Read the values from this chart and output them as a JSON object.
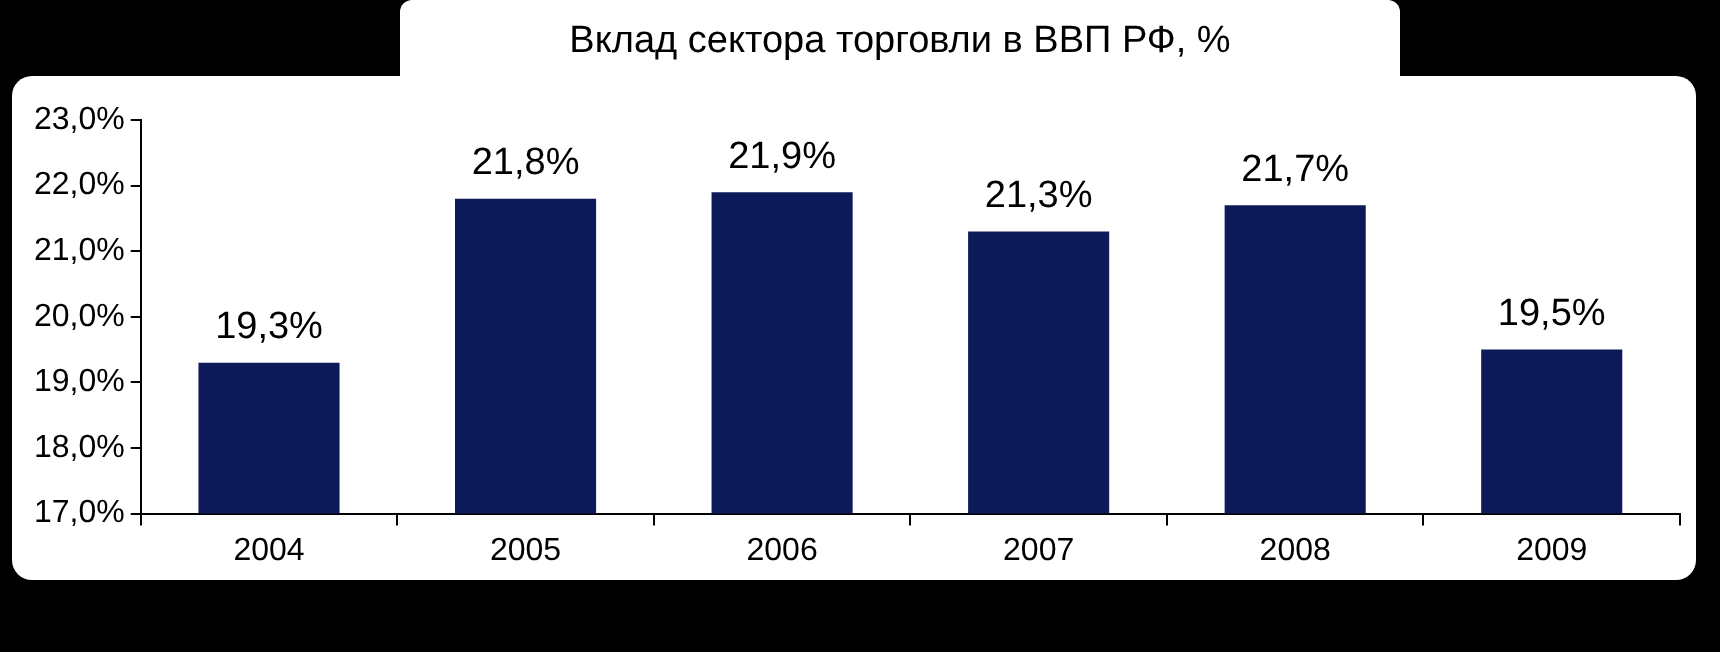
{
  "chart_data": {
    "type": "bar",
    "title": "Вклад сектора торговли в ВВП РФ, %",
    "categories": [
      "2004",
      "2005",
      "2006",
      "2007",
      "2008",
      "2009"
    ],
    "values": [
      19.3,
      21.8,
      21.9,
      21.3,
      21.7,
      19.5
    ],
    "value_labels": [
      "19,3%",
      "21,8%",
      "21,9%",
      "21,3%",
      "21,7%",
      "19,5%"
    ],
    "color": "#0c1a5a",
    "ylim": [
      17,
      23
    ],
    "yticks": [
      {
        "value": 17,
        "label": "17,0%"
      },
      {
        "value": 18,
        "label": "18,0%"
      },
      {
        "value": 19,
        "label": "19,0%"
      },
      {
        "value": 20,
        "label": "20,0%"
      },
      {
        "value": 21,
        "label": "21,0%"
      },
      {
        "value": 22,
        "label": "22,0%"
      },
      {
        "value": 23,
        "label": "23,0%"
      }
    ],
    "legend": false
  }
}
